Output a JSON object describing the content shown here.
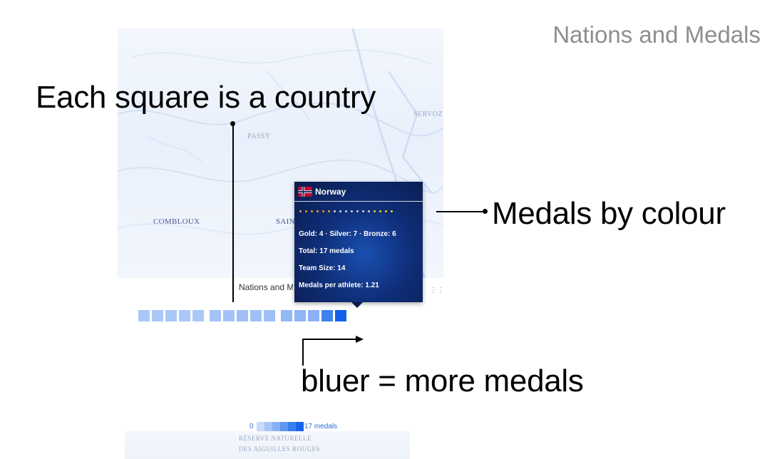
{
  "slide": {
    "title": "Nations and Medals"
  },
  "callouts": {
    "square": "Each square is a country",
    "medals": "Medals by colour",
    "bluer": "bluer = more medals"
  },
  "map_labels": {
    "passy": "PASSY",
    "servoz": "SERVOZ",
    "combloux": "COMBLOUX",
    "saint": "SAINT"
  },
  "map_bottom": {
    "line1": "RÉSERVE NATURELLE",
    "line2": "DES AIGUILLES ROUGES"
  },
  "widget": {
    "label": "Nations and Medals",
    "square_colors": [
      "#a9c8f8",
      "#a9c8f8",
      "#a9c8f8",
      "#a9c8f8",
      "#a9c8f8",
      "#a3c3f7",
      "#a3c3f7",
      "#9fc0f7",
      "#9fc0f7",
      "#9fc0f7",
      "#93b8f6",
      "#8fb5f6",
      "#8cb2f5",
      "#3d82ee",
      "#1560e8"
    ]
  },
  "tooltip": {
    "country": "Norway",
    "medal_dots": [
      "#e89b2e",
      "#e89b2e",
      "#e89b2e",
      "#e89b2e",
      "#e89b2e",
      "#e89b2e",
      "#cfd4de",
      "#cfd4de",
      "#cfd4de",
      "#cfd4de",
      "#cfd4de",
      "#cfd4de",
      "#cfd4de",
      "#f5d21c",
      "#f5d21c",
      "#f5d21c",
      "#f5d21c"
    ],
    "medals_line": "Gold: 4 · Silver: 7 · Bronze: 6",
    "total": "Total: 17 medals",
    "team_size": "Team Size: 14",
    "per_athlete": "Medals per athlete: 1.21"
  },
  "legend": {
    "min": "0",
    "max": "17 medals",
    "colors": [
      "#c6dafb",
      "#a6c5f8",
      "#86b0f5",
      "#5e95f1",
      "#3a7ded",
      "#1765ea"
    ]
  }
}
